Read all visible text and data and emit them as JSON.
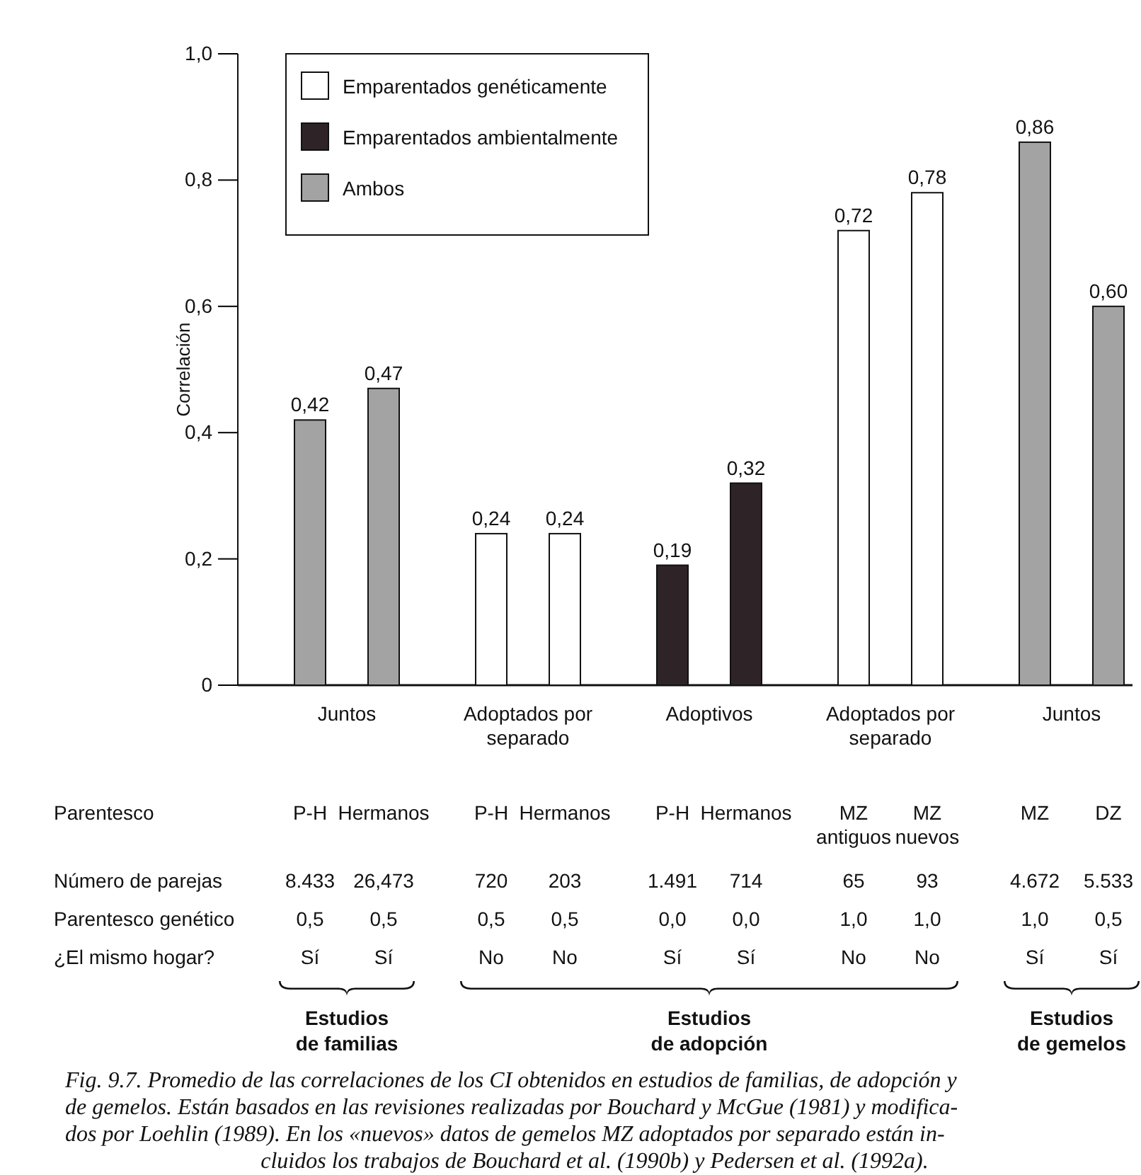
{
  "chart_data": {
    "type": "bar",
    "ylabel": "Correlación",
    "stacked": true,
    "legend": "top left",
    "categories": [
      "P-H",
      "Hermanos",
      "P-H",
      "Hermanos",
      "P-H",
      "Hermanos",
      "MZ\nantiguos",
      "MZ\nnuevos",
      "MZ",
      "DZ"
    ],
    "series": [
      {
        "name": "Emparentados genéticamente",
        "color": "#ffffff",
        "values": [
          null,
          null,
          0.24,
          0.24,
          null,
          null,
          0.72,
          0.78,
          null,
          null
        ],
        "value_labels": [
          null,
          null,
          "0,24",
          "0,24",
          null,
          null,
          "0,72",
          "0,78",
          null,
          null
        ]
      },
      {
        "name": "Emparentados ambientalmente",
        "color": "#2e2428",
        "values": [
          null,
          null,
          null,
          null,
          0.19,
          0.32,
          null,
          null,
          null,
          null
        ],
        "value_labels": [
          null,
          null,
          null,
          null,
          "0,19",
          "0,32",
          null,
          null,
          null,
          null
        ]
      },
      {
        "name": "Ambos",
        "color": "#a3a3a3",
        "values": [
          0.42,
          0.47,
          null,
          null,
          null,
          null,
          null,
          null,
          0.86,
          0.6
        ],
        "value_labels": [
          "0,42",
          "0,47",
          null,
          null,
          null,
          null,
          null,
          null,
          "0,86",
          "0,60"
        ]
      }
    ],
    "ylim": [
      0,
      1
    ],
    "yticks": [
      0,
      {
        "value": 0.2,
        "label": "0,2"
      },
      {
        "value": 0.4,
        "label": "0,4"
      },
      {
        "value": 0.6,
        "label": "0,6"
      },
      {
        "value": 0.8,
        "label": "0,8"
      },
      {
        "value": 1.0,
        "label": "1,0"
      }
    ],
    "annotations": [
      "Juntos",
      "Adoptados por\nseparado",
      "Adoptivos",
      "Adoptados por\nseparado",
      "Juntos",
      "Parentesco",
      "Número de parejas",
      "8.433",
      "26,473",
      "720",
      "203",
      "1.491",
      "714",
      "65",
      "93",
      "4.672",
      "5.533",
      "Parentesco genético",
      "0,5",
      "0,5",
      "0,5",
      "0,5",
      "0,0",
      "0,0",
      "1,0",
      "1,0",
      "1,0",
      "0,5",
      "¿El mismo hogar?",
      "Sí",
      "Sí",
      "No",
      "No",
      "Sí",
      "Sí",
      "No",
      "No",
      "Sí",
      "Sí",
      "Estudios\nde familias",
      "Estudios\nde adopción",
      "Estudios\nde gemelos",
      "Fig. 9.7.  Promedio de las correlaciones de los CI obtenidos en estudios de familias, de adopción y\nde gemelos. Están basados en las revisiones realizadas por Bouchard y McGue (1981) y modifica-\ndos por Loehlin (1989). En los «nuevos» datos de gemelos MZ adoptados por separado están in-\ncluidos los trabajos de Bouchard et al. (1990b) y Pedersen et al. (1992a)."
    ]
  }
}
